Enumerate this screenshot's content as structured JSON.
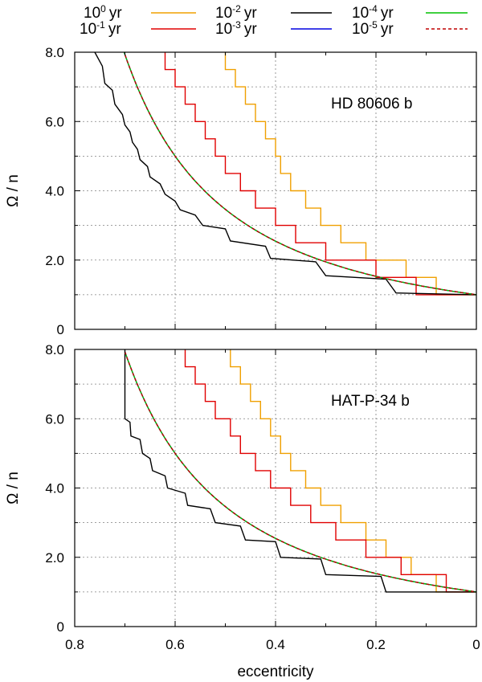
{
  "chart_data": {
    "type": "line",
    "xlabel": "eccentricity",
    "ylabel": "Ω / n",
    "xlim": [
      0.8,
      0.0
    ],
    "ylim": [
      0,
      8.0
    ],
    "x_ticks": [
      0.8,
      0.6,
      0.4,
      0.2,
      0.0
    ],
    "x_tick_labels": [
      "0.8",
      "0.6",
      "0.4",
      "0.2",
      "0"
    ],
    "y_ticks": [
      0,
      2,
      4,
      6,
      8
    ],
    "y_tick_labels": [
      "0",
      "2.0",
      "4.0",
      "6.0",
      "8.0"
    ],
    "grid": true,
    "legend": [
      {
        "label_base": "10",
        "label_exp": "0",
        "label_unit": "yr",
        "color": "#f0a000",
        "dashed": false
      },
      {
        "label_base": "10",
        "label_exp": "-1",
        "label_unit": "yr",
        "color": "#e00000",
        "dashed": false
      },
      {
        "label_base": "10",
        "label_exp": "-2",
        "label_unit": "yr",
        "color": "#000000",
        "dashed": false
      },
      {
        "label_base": "10",
        "label_exp": "-3",
        "label_unit": "yr",
        "color": "#0000e0",
        "dashed": false
      },
      {
        "label_base": "10",
        "label_exp": "-4",
        "label_unit": "yr",
        "color": "#00c000",
        "dashed": false
      },
      {
        "label_base": "10",
        "label_exp": "-5",
        "label_unit": "yr",
        "color": "#c00000",
        "dashed": true
      }
    ],
    "panels": [
      {
        "title": "HD 80606 b",
        "series": [
          {
            "name": "10^0 yr",
            "color": "#f0a000",
            "dashed": false,
            "points": [
              [
                0.5,
                8.0
              ],
              [
                0.5,
                7.5
              ],
              [
                0.48,
                7.5
              ],
              [
                0.48,
                7.0
              ],
              [
                0.46,
                7.0
              ],
              [
                0.46,
                6.5
              ],
              [
                0.44,
                6.5
              ],
              [
                0.44,
                6.0
              ],
              [
                0.42,
                6.0
              ],
              [
                0.42,
                5.5
              ],
              [
                0.4,
                5.5
              ],
              [
                0.4,
                5.0
              ],
              [
                0.39,
                5.0
              ],
              [
                0.39,
                4.5
              ],
              [
                0.37,
                4.5
              ],
              [
                0.37,
                4.0
              ],
              [
                0.34,
                4.0
              ],
              [
                0.34,
                3.5
              ],
              [
                0.31,
                3.5
              ],
              [
                0.31,
                3.0
              ],
              [
                0.27,
                3.0
              ],
              [
                0.27,
                2.5
              ],
              [
                0.22,
                2.5
              ],
              [
                0.22,
                2.0
              ],
              [
                0.14,
                2.0
              ],
              [
                0.14,
                1.5
              ],
              [
                0.08,
                1.5
              ],
              [
                0.08,
                1.0
              ],
              [
                0.0,
                1.0
              ]
            ]
          },
          {
            "name": "10^-1 yr",
            "color": "#e00000",
            "dashed": false,
            "points": [
              [
                0.62,
                8.0
              ],
              [
                0.62,
                7.5
              ],
              [
                0.6,
                7.5
              ],
              [
                0.6,
                7.0
              ],
              [
                0.58,
                7.0
              ],
              [
                0.58,
                6.5
              ],
              [
                0.56,
                6.5
              ],
              [
                0.56,
                6.0
              ],
              [
                0.54,
                6.0
              ],
              [
                0.54,
                5.5
              ],
              [
                0.52,
                5.5
              ],
              [
                0.52,
                5.0
              ],
              [
                0.5,
                5.0
              ],
              [
                0.5,
                4.5
              ],
              [
                0.47,
                4.5
              ],
              [
                0.47,
                4.0
              ],
              [
                0.44,
                4.0
              ],
              [
                0.44,
                3.5
              ],
              [
                0.4,
                3.5
              ],
              [
                0.4,
                3.0
              ],
              [
                0.36,
                3.0
              ],
              [
                0.36,
                2.5
              ],
              [
                0.3,
                2.5
              ],
              [
                0.3,
                2.0
              ],
              [
                0.2,
                2.0
              ],
              [
                0.2,
                1.5
              ],
              [
                0.12,
                1.5
              ],
              [
                0.12,
                1.0
              ],
              [
                0.0,
                1.0
              ]
            ]
          },
          {
            "name": "10^-2 yr",
            "color": "#000000",
            "dashed": false,
            "points": [
              [
                0.76,
                8.0
              ],
              [
                0.745,
                7.6
              ],
              [
                0.74,
                7.1
              ],
              [
                0.725,
                6.9
              ],
              [
                0.72,
                6.5
              ],
              [
                0.705,
                6.2
              ],
              [
                0.7,
                5.9
              ],
              [
                0.69,
                5.7
              ],
              [
                0.685,
                5.4
              ],
              [
                0.675,
                5.2
              ],
              [
                0.67,
                4.9
              ],
              [
                0.655,
                4.7
              ],
              [
                0.65,
                4.4
              ],
              [
                0.63,
                4.2
              ],
              [
                0.62,
                3.9
              ],
              [
                0.6,
                3.7
              ],
              [
                0.59,
                3.45
              ],
              [
                0.56,
                3.3
              ],
              [
                0.545,
                3.0
              ],
              [
                0.5,
                2.9
              ],
              [
                0.49,
                2.55
              ],
              [
                0.42,
                2.4
              ],
              [
                0.41,
                2.05
              ],
              [
                0.32,
                1.95
              ],
              [
                0.3,
                1.55
              ],
              [
                0.18,
                1.45
              ],
              [
                0.16,
                1.05
              ],
              [
                0.0,
                1.0
              ]
            ]
          },
          {
            "name": "10^-3 yr",
            "color": "#0000e0",
            "dashed": false,
            "e0": 0.76
          },
          {
            "name": "10^-4 yr",
            "color": "#00c000",
            "dashed": false,
            "e0": 0.75
          },
          {
            "name": "10^-5 yr",
            "color": "#c00000",
            "dashed": true,
            "e0": 0.75
          }
        ]
      },
      {
        "title": "HAT-P-34 b",
        "series": [
          {
            "name": "10^0 yr",
            "color": "#f0a000",
            "dashed": false,
            "points": [
              [
                0.49,
                8.0
              ],
              [
                0.49,
                7.5
              ],
              [
                0.47,
                7.5
              ],
              [
                0.47,
                7.0
              ],
              [
                0.45,
                7.0
              ],
              [
                0.45,
                6.5
              ],
              [
                0.43,
                6.5
              ],
              [
                0.43,
                6.0
              ],
              [
                0.41,
                6.0
              ],
              [
                0.41,
                5.5
              ],
              [
                0.39,
                5.5
              ],
              [
                0.39,
                5.0
              ],
              [
                0.37,
                5.0
              ],
              [
                0.37,
                4.5
              ],
              [
                0.34,
                4.5
              ],
              [
                0.34,
                4.0
              ],
              [
                0.31,
                4.0
              ],
              [
                0.31,
                3.5
              ],
              [
                0.27,
                3.5
              ],
              [
                0.27,
                3.0
              ],
              [
                0.22,
                3.0
              ],
              [
                0.22,
                2.5
              ],
              [
                0.18,
                2.5
              ],
              [
                0.18,
                2.0
              ],
              [
                0.13,
                2.0
              ],
              [
                0.13,
                1.5
              ],
              [
                0.08,
                1.5
              ],
              [
                0.08,
                1.0
              ],
              [
                0.0,
                1.0
              ]
            ]
          },
          {
            "name": "10^-1 yr",
            "color": "#e00000",
            "dashed": false,
            "points": [
              [
                0.58,
                8.0
              ],
              [
                0.58,
                7.5
              ],
              [
                0.56,
                7.5
              ],
              [
                0.56,
                7.0
              ],
              [
                0.54,
                7.0
              ],
              [
                0.54,
                6.5
              ],
              [
                0.52,
                6.5
              ],
              [
                0.52,
                6.0
              ],
              [
                0.49,
                6.0
              ],
              [
                0.49,
                5.5
              ],
              [
                0.47,
                5.5
              ],
              [
                0.47,
                5.0
              ],
              [
                0.44,
                5.0
              ],
              [
                0.44,
                4.5
              ],
              [
                0.41,
                4.5
              ],
              [
                0.41,
                4.0
              ],
              [
                0.37,
                4.0
              ],
              [
                0.37,
                3.5
              ],
              [
                0.33,
                3.5
              ],
              [
                0.33,
                3.0
              ],
              [
                0.28,
                3.0
              ],
              [
                0.28,
                2.5
              ],
              [
                0.22,
                2.5
              ],
              [
                0.22,
                2.0
              ],
              [
                0.15,
                2.0
              ],
              [
                0.15,
                1.5
              ],
              [
                0.06,
                1.5
              ],
              [
                0.06,
                1.0
              ],
              [
                0.0,
                1.0
              ]
            ]
          },
          {
            "name": "10^-2 yr",
            "color": "#000000",
            "dashed": false,
            "points": [
              [
                0.7,
                8.0
              ],
              [
                0.7,
                6.0
              ],
              [
                0.69,
                5.9
              ],
              [
                0.688,
                5.5
              ],
              [
                0.67,
                5.4
              ],
              [
                0.665,
                5.0
              ],
              [
                0.65,
                4.85
              ],
              [
                0.645,
                4.5
              ],
              [
                0.62,
                4.35
              ],
              [
                0.615,
                4.0
              ],
              [
                0.58,
                3.85
              ],
              [
                0.575,
                3.5
              ],
              [
                0.53,
                3.4
              ],
              [
                0.52,
                3.0
              ],
              [
                0.47,
                2.9
              ],
              [
                0.46,
                2.5
              ],
              [
                0.4,
                2.45
              ],
              [
                0.39,
                2.0
              ],
              [
                0.31,
                1.95
              ],
              [
                0.3,
                1.5
              ],
              [
                0.19,
                1.45
              ],
              [
                0.18,
                1.0
              ],
              [
                0.0,
                1.0
              ]
            ]
          },
          {
            "name": "10^-3 yr",
            "color": "#0000e0",
            "dashed": false,
            "e0": 0.7
          },
          {
            "name": "10^-4 yr",
            "color": "#00c000",
            "dashed": false,
            "e0": 0.7
          },
          {
            "name": "10^-5 yr",
            "color": "#c00000",
            "dashed": true,
            "e0": 0.7
          }
        ]
      }
    ]
  }
}
